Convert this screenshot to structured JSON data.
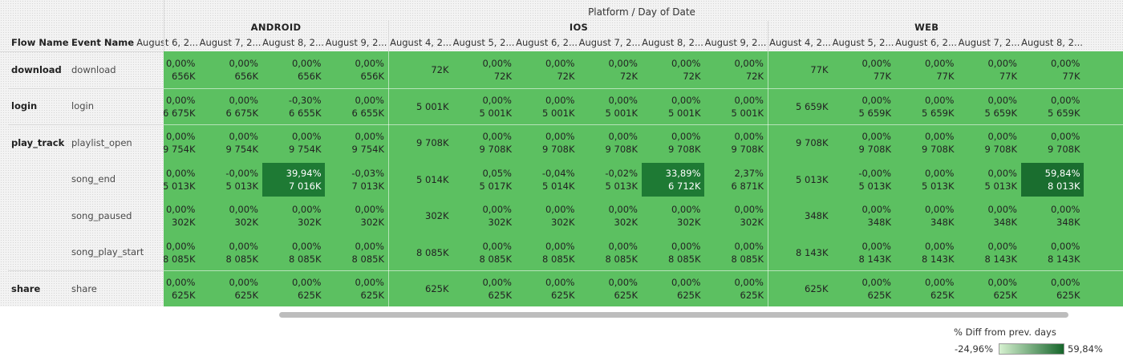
{
  "header": {
    "axis_title": "Platform / Day of Date",
    "flow_col": "Flow Name",
    "event_col": "Event Name"
  },
  "legend": {
    "title": "% Diff from prev. days",
    "min_label": "-24,96%",
    "max_label": "59,84%",
    "min_value": -24.96,
    "max_value": 59.84
  },
  "colors": {
    "cell_base": "#5cc061",
    "cell_dark": "#1e7a34",
    "cell_darker": "#1a6e2f",
    "legend_light": "#d6f1d0",
    "legend_dark": "#16652b"
  },
  "chart_data": {
    "type": "table",
    "title": "Platform / Day of Date",
    "columns": [
      {
        "platform": "ANDROID",
        "dates": [
          "August 6, 2...",
          "August 7, 2...",
          "August 8, 2...",
          "August 9, 2..."
        ]
      },
      {
        "platform": "IOS",
        "dates": [
          "August 4, 2...",
          "August 5, 2...",
          "August 6, 2...",
          "August 7, 2...",
          "August 8, 2...",
          "August 9, 2..."
        ]
      },
      {
        "platform": "WEB",
        "dates": [
          "August 4, 2...",
          "August 5, 2...",
          "August 6, 2...",
          "August 7, 2...",
          "August 8, 2..."
        ]
      }
    ],
    "rows": [
      {
        "flow": "download",
        "event": "download",
        "cells": [
          [
            "0,00%",
            "656K"
          ],
          [
            "0,00%",
            "656K"
          ],
          [
            "0,00%",
            "656K"
          ],
          [
            "0,00%",
            "656K"
          ],
          [
            null,
            "72K"
          ],
          [
            "0,00%",
            "72K"
          ],
          [
            "0,00%",
            "72K"
          ],
          [
            "0,00%",
            "72K"
          ],
          [
            "0,00%",
            "72K"
          ],
          [
            "0,00%",
            "72K"
          ],
          [
            null,
            "77K"
          ],
          [
            "0,00%",
            "77K"
          ],
          [
            "0,00%",
            "77K"
          ],
          [
            "0,00%",
            "77K"
          ],
          [
            "0,00%",
            "77K"
          ]
        ]
      },
      {
        "flow": "login",
        "event": "login",
        "cells": [
          [
            "0,00%",
            "6 675K"
          ],
          [
            "0,00%",
            "6 675K"
          ],
          [
            "-0,30%",
            "6 655K"
          ],
          [
            "0,00%",
            "6 655K"
          ],
          [
            null,
            "5 001K"
          ],
          [
            "0,00%",
            "5 001K"
          ],
          [
            "0,00%",
            "5 001K"
          ],
          [
            "0,00%",
            "5 001K"
          ],
          [
            "0,00%",
            "5 001K"
          ],
          [
            "0,00%",
            "5 001K"
          ],
          [
            null,
            "5 659K"
          ],
          [
            "0,00%",
            "5 659K"
          ],
          [
            "0,00%",
            "5 659K"
          ],
          [
            "0,00%",
            "5 659K"
          ],
          [
            "0,00%",
            "5 659K"
          ]
        ]
      },
      {
        "flow": "play_track",
        "event": "playlist_open",
        "cells": [
          [
            "0,00%",
            "9 754K"
          ],
          [
            "0,00%",
            "9 754K"
          ],
          [
            "0,00%",
            "9 754K"
          ],
          [
            "0,00%",
            "9 754K"
          ],
          [
            null,
            "9 708K"
          ],
          [
            "0,00%",
            "9 708K"
          ],
          [
            "0,00%",
            "9 708K"
          ],
          [
            "0,00%",
            "9 708K"
          ],
          [
            "0,00%",
            "9 708K"
          ],
          [
            "0,00%",
            "9 708K"
          ],
          [
            null,
            "9 708K"
          ],
          [
            "0,00%",
            "9 708K"
          ],
          [
            "0,00%",
            "9 708K"
          ],
          [
            "0,00%",
            "9 708K"
          ],
          [
            "0,00%",
            "9 708K"
          ]
        ]
      },
      {
        "flow": "",
        "event": "song_end",
        "cells": [
          [
            "0,00%",
            "5 013K"
          ],
          [
            "-0,00%",
            "5 013K"
          ],
          [
            "39,94%",
            "7 016K"
          ],
          [
            "-0,03%",
            "7 013K"
          ],
          [
            null,
            "5 014K"
          ],
          [
            "0,05%",
            "5 017K"
          ],
          [
            "-0,04%",
            "5 014K"
          ],
          [
            "-0,02%",
            "5 013K"
          ],
          [
            "33,89%",
            "6 712K"
          ],
          [
            "2,37%",
            "6 871K"
          ],
          [
            null,
            "5 013K"
          ],
          [
            "-0,00%",
            "5 013K"
          ],
          [
            "0,00%",
            "5 013K"
          ],
          [
            "0,00%",
            "5 013K"
          ],
          [
            "59,84%",
            "8 013K"
          ]
        ]
      },
      {
        "flow": "",
        "event": "song_paused",
        "cells": [
          [
            "0,00%",
            "302K"
          ],
          [
            "0,00%",
            "302K"
          ],
          [
            "0,00%",
            "302K"
          ],
          [
            "0,00%",
            "302K"
          ],
          [
            null,
            "302K"
          ],
          [
            "0,00%",
            "302K"
          ],
          [
            "0,00%",
            "302K"
          ],
          [
            "0,00%",
            "302K"
          ],
          [
            "0,00%",
            "302K"
          ],
          [
            "0,00%",
            "302K"
          ],
          [
            null,
            "348K"
          ],
          [
            "0,00%",
            "348K"
          ],
          [
            "0,00%",
            "348K"
          ],
          [
            "0,00%",
            "348K"
          ],
          [
            "0,00%",
            "348K"
          ]
        ]
      },
      {
        "flow": "",
        "event": "song_play_start",
        "cells": [
          [
            "0,00%",
            "8 085K"
          ],
          [
            "0,00%",
            "8 085K"
          ],
          [
            "0,00%",
            "8 085K"
          ],
          [
            "0,00%",
            "8 085K"
          ],
          [
            null,
            "8 085K"
          ],
          [
            "0,00%",
            "8 085K"
          ],
          [
            "0,00%",
            "8 085K"
          ],
          [
            "0,00%",
            "8 085K"
          ],
          [
            "0,00%",
            "8 085K"
          ],
          [
            "0,00%",
            "8 085K"
          ],
          [
            null,
            "8 143K"
          ],
          [
            "0,00%",
            "8 143K"
          ],
          [
            "0,00%",
            "8 143K"
          ],
          [
            "0,00%",
            "8 143K"
          ],
          [
            "0,00%",
            "8 143K"
          ]
        ]
      },
      {
        "flow": "share",
        "event": "share",
        "cells": [
          [
            "0,00%",
            "625K"
          ],
          [
            "0,00%",
            "625K"
          ],
          [
            "0,00%",
            "625K"
          ],
          [
            "0,00%",
            "625K"
          ],
          [
            null,
            "625K"
          ],
          [
            "0,00%",
            "625K"
          ],
          [
            "0,00%",
            "625K"
          ],
          [
            "0,00%",
            "625K"
          ],
          [
            "0,00%",
            "625K"
          ],
          [
            "0,00%",
            "625K"
          ],
          [
            null,
            "625K"
          ],
          [
            "0,00%",
            "625K"
          ],
          [
            "0,00%",
            "625K"
          ],
          [
            "0,00%",
            "625K"
          ],
          [
            "0,00%",
            "625K"
          ]
        ]
      }
    ]
  }
}
